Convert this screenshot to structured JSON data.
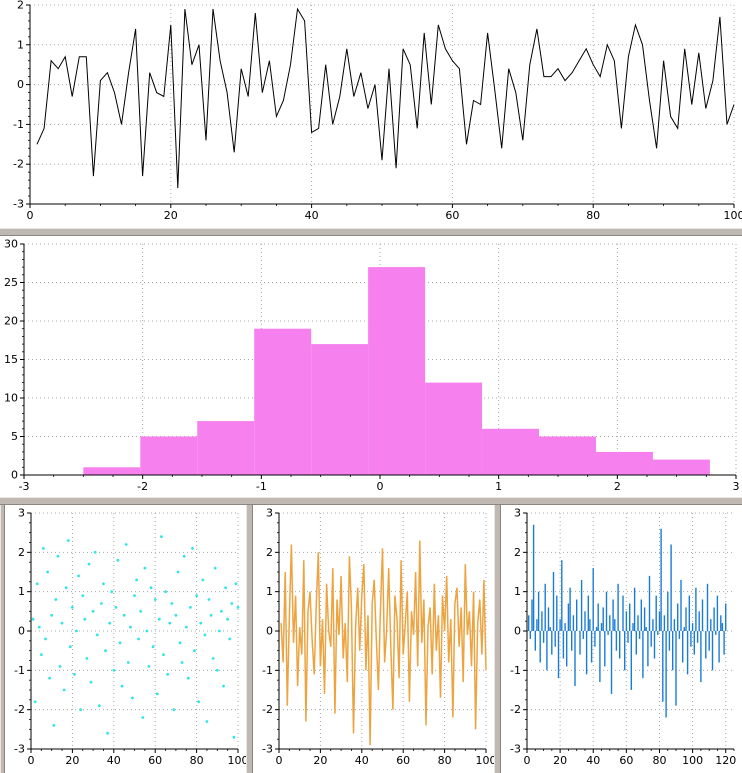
{
  "colors": {
    "grid": "#a8a8a8",
    "axis": "#000000",
    "splitter": "#c0b8b3",
    "background": "#ffffff"
  },
  "chart_data": [
    {
      "id": "top-line",
      "type": "line",
      "title": "",
      "xlabel": "",
      "ylabel": "",
      "color": "#000000",
      "stroke_width": 1,
      "grid": true,
      "legend": "none",
      "xlim": [
        0,
        100
      ],
      "ylim": [
        -3,
        2
      ],
      "xticks": [
        0,
        20,
        40,
        60,
        80,
        100
      ],
      "yticks": [
        -3,
        -2,
        -1,
        0,
        1,
        2
      ],
      "xminor": 5,
      "yminor": 0.2,
      "x_start": 1,
      "x_step": 1,
      "y": [
        -1.5,
        -1.1,
        0.6,
        0.4,
        0.7,
        -0.3,
        0.7,
        0.7,
        -2.3,
        0.1,
        0.3,
        -0.2,
        -1.0,
        0.3,
        1.4,
        -2.3,
        0.3,
        -0.2,
        -0.3,
        1.5,
        -2.6,
        1.9,
        0.5,
        1.0,
        -1.4,
        1.9,
        0.6,
        -0.2,
        -1.7,
        0.4,
        -0.3,
        1.8,
        -0.2,
        0.6,
        -0.8,
        -0.4,
        0.5,
        1.9,
        1.6,
        -1.2,
        -1.1,
        0.5,
        -1.0,
        -0.3,
        0.9,
        -0.3,
        0.3,
        -0.6,
        0.0,
        -1.9,
        0.4,
        -2.1,
        0.9,
        0.5,
        -1.1,
        1.3,
        -0.5,
        1.5,
        0.9,
        0.6,
        0.4,
        -1.5,
        -0.4,
        -0.5,
        1.3,
        -0.1,
        -1.6,
        0.4,
        -0.2,
        -1.4,
        0.5,
        1.4,
        0.2,
        0.2,
        0.4,
        0.1,
        0.3,
        0.6,
        0.9,
        0.5,
        0.2,
        1.0,
        0.6,
        -1.1,
        0.7,
        1.5,
        1.0,
        -0.4,
        -1.6,
        0.6,
        -0.8,
        -1.1,
        0.9,
        -0.5,
        0.8,
        -0.6,
        0.1,
        1.7,
        -1.0,
        -0.5
      ]
    },
    {
      "id": "histogram",
      "type": "bar",
      "title": "",
      "xlabel": "",
      "ylabel": "",
      "color": "#f580ee",
      "grid": true,
      "legend": "none",
      "xlim": [
        -3,
        3
      ],
      "ylim": [
        0,
        30
      ],
      "xticks": [
        -3,
        -2,
        -1,
        0,
        1,
        2,
        3
      ],
      "yticks": [
        0,
        5,
        10,
        15,
        20,
        25,
        30
      ],
      "xminor": 0.25,
      "yminor": 1,
      "bin_start": -2.5,
      "bin_width": 0.48,
      "counts": [
        1,
        5,
        7,
        19,
        17,
        27,
        12,
        6,
        5,
        3,
        2
      ]
    },
    {
      "id": "scatter-cyan",
      "type": "scatter",
      "title": "",
      "xlabel": "",
      "ylabel": "",
      "color": "#2fe5e5",
      "grid": true,
      "legend": "none",
      "xlim": [
        0,
        100
      ],
      "ylim": [
        -3,
        3
      ],
      "xticks": [
        0,
        20,
        40,
        60,
        80,
        100
      ],
      "yticks": [
        -3,
        -2,
        -1,
        0,
        1,
        2,
        3
      ],
      "xminor": 5,
      "yminor": 0.25,
      "x_start": 1,
      "x_step": 1,
      "y": [
        0.3,
        -1.8,
        1.2,
        0.1,
        -0.6,
        2.1,
        -0.2,
        1.5,
        -1.2,
        0.4,
        -2.4,
        0.8,
        1.9,
        -0.9,
        0.2,
        -1.5,
        1.1,
        2.3,
        -0.4,
        0.6,
        -1.1,
        0.0,
        1.4,
        -2.0,
        0.9,
        0.3,
        -0.7,
        1.7,
        -1.3,
        0.5,
        2.0,
        -0.1,
        -1.9,
        0.7,
        1.2,
        -0.5,
        -2.6,
        0.2,
        1.0,
        -1.0,
        0.6,
        1.8,
        -0.3,
        -1.4,
        0.4,
        2.2,
        -0.8,
        0.1,
        -1.7,
        0.9,
        1.3,
        -0.2,
        0.5,
        -2.2,
        1.6,
        0.0,
        -0.9,
        1.1,
        -0.4,
        0.8,
        -1.6,
        0.3,
        2.4,
        -0.6,
        1.0,
        -1.1,
        0.2,
        0.7,
        -2.0,
        0.4,
        1.5,
        -0.3,
        -0.8,
        1.9,
        0.1,
        -1.2,
        0.6,
        2.1,
        -0.5,
        0.9,
        -1.8,
        0.2,
        1.3,
        -0.1,
        -2.3,
        0.8,
        0.4,
        -0.7,
        1.6,
        -1.0,
        0.0,
        0.5,
        -1.4,
        1.1,
        0.3,
        -0.2,
        0.7,
        -2.7,
        1.2,
        0.6
      ]
    },
    {
      "id": "line-orange",
      "type": "line",
      "title": "",
      "xlabel": "",
      "ylabel": "",
      "color": "#eda440",
      "stroke_width": 1.5,
      "grid": true,
      "legend": "none",
      "xlim": [
        0,
        100
      ],
      "ylim": [
        -3,
        3
      ],
      "xticks": [
        0,
        20,
        40,
        60,
        80,
        100
      ],
      "yticks": [
        -3,
        -2,
        -1,
        0,
        1,
        2,
        3
      ],
      "xminor": 5,
      "yminor": 0.25,
      "x_start": 1,
      "x_step": 1,
      "y": [
        0.2,
        -0.8,
        1.5,
        -1.9,
        0.4,
        2.2,
        -0.3,
        0.9,
        -1.4,
        0.1,
        -0.6,
        1.8,
        -2.3,
        0.5,
        1.0,
        -0.2,
        -1.1,
        0.7,
        2.0,
        -0.9,
        0.3,
        -1.6,
        1.2,
        0.0,
        -0.4,
        1.6,
        -2.1,
        0.8,
        -0.1,
        1.4,
        -0.7,
        0.2,
        -1.3,
        1.9,
        0.6,
        -2.6,
        0.1,
        1.1,
        -0.5,
        0.9,
        1.7,
        -1.0,
        0.4,
        -2.9,
        0.7,
        1.3,
        -0.2,
        -1.5,
        0.5,
        2.1,
        -0.8,
        0.0,
        1.6,
        -0.4,
        -2.0,
        0.9,
        0.3,
        -1.2,
        1.8,
        -0.6,
        0.2,
        1.0,
        -1.8,
        0.5,
        -0.1,
        1.5,
        -0.9,
        2.3,
        -0.3,
        0.8,
        -2.4,
        0.1,
        0.6,
        -1.1,
        1.2,
        -0.5,
        0.4,
        -1.7,
        0.9,
        0.0,
        1.4,
        -0.8,
        0.3,
        -2.2,
        0.7,
        1.1,
        -0.4,
        0.6,
        -1.3,
        1.7,
        -0.1,
        0.5,
        -0.9,
        1.0,
        -2.5,
        0.2,
        0.8,
        -0.6,
        1.3,
        -1.0
      ]
    },
    {
      "id": "impulses-blue",
      "type": "impulses",
      "title": "",
      "xlabel": "",
      "ylabel": "",
      "color": "#1b7cd5",
      "stroke_width": 1.4,
      "grid": true,
      "legend": "none",
      "xlim": [
        0,
        125
      ],
      "ylim": [
        -3,
        3
      ],
      "xticks": [
        0,
        20,
        40,
        60,
        80,
        100,
        120
      ],
      "yticks": [
        -3,
        -2,
        -1,
        0,
        1,
        2,
        3
      ],
      "xminor": 5,
      "yminor": 0.25,
      "x_start": 1,
      "x_step": 1,
      "y": [
        0.4,
        -0.2,
        0.8,
        2.7,
        -0.5,
        0.3,
        1.0,
        -0.8,
        0.5,
        -0.3,
        1.2,
        -1.0,
        0.6,
        0.1,
        -0.6,
        1.5,
        -0.4,
        0.9,
        -1.2,
        0.3,
        1.8,
        -0.7,
        0.2,
        -0.9,
        0.7,
        1.1,
        -0.5,
        0.4,
        -1.4,
        0.8,
        0.0,
        -0.6,
        1.3,
        -0.2,
        0.5,
        -1.1,
        0.9,
        0.3,
        -0.8,
        1.6,
        -0.4,
        0.1,
        0.7,
        -1.3,
        0.2,
        0.6,
        -0.9,
        1.0,
        -0.1,
        0.4,
        -1.6,
        0.8,
        0.3,
        -0.5,
        1.2,
        -0.7,
        0.0,
        0.9,
        -1.0,
        0.5,
        -0.3,
        0.7,
        -1.5,
        0.2,
        1.1,
        -0.6,
        0.4,
        -0.2,
        0.8,
        -1.2,
        0.6,
        0.1,
        -0.9,
        1.4,
        -0.4,
        0.3,
        -0.7,
        0.9,
        -0.1,
        0.5,
        2.6,
        -1.8,
        0.4,
        -2.2,
        1.0,
        -0.5,
        2.2,
        -1.0,
        0.3,
        -1.9,
        0.7,
        -0.2,
        1.3,
        -0.8,
        0.1,
        0.6,
        -1.1,
        0.9,
        -0.4,
        0.2,
        -0.6,
        1.1,
        -0.3,
        0.5,
        -1.3,
        0.8,
        0.0,
        -0.7,
        1.2,
        -0.5,
        0.3,
        -1.0,
        0.6,
        -0.1,
        0.9,
        -0.8,
        0.4,
        0.2,
        -0.6,
        0.7
      ]
    }
  ]
}
